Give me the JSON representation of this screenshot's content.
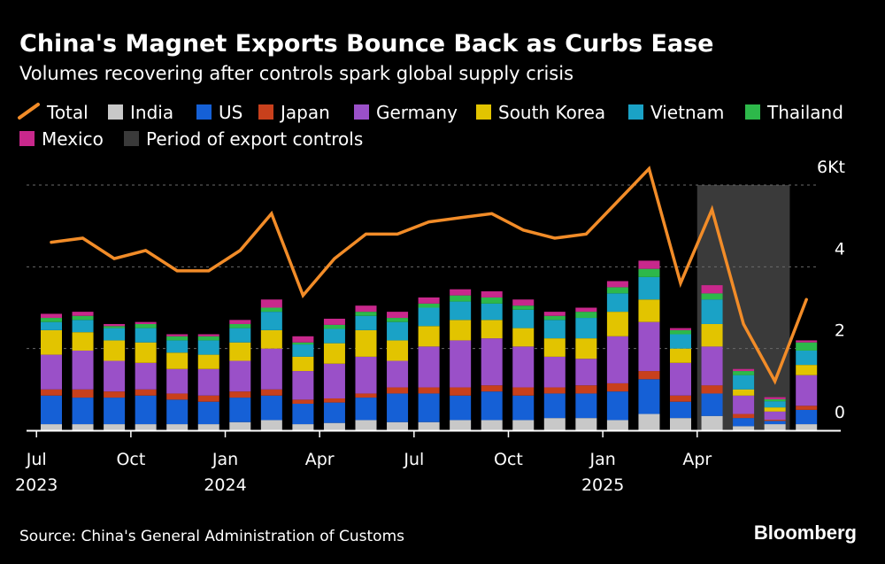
{
  "title": "China's Magnet Exports Bounce Back as Curbs Ease",
  "subtitle": "Volumes recovering after controls spark global supply crisis",
  "source": "Source: China's General Administration of Customs",
  "logo": "Bloomberg",
  "colors": {
    "background": "#000000",
    "total_line": "#f28c28",
    "India": "#c8c8c8",
    "US": "#1560d6",
    "Japan": "#c8401c",
    "Germany": "#9a50c8",
    "South Korea": "#e2c400",
    "Vietnam": "#1aa2c6",
    "Thailand": "#2db84a",
    "Mexico": "#c8288c",
    "control_period": "#3a3a3a",
    "gridline": "#6a6a6a"
  },
  "legend": [
    {
      "label": "Total",
      "kind": "line"
    },
    {
      "label": "India",
      "kind": "swatch"
    },
    {
      "label": "US",
      "kind": "swatch"
    },
    {
      "label": "Japan",
      "kind": "swatch"
    },
    {
      "label": "Germany",
      "kind": "swatch"
    },
    {
      "label": "South Korea",
      "kind": "swatch"
    },
    {
      "label": "Vietnam",
      "kind": "swatch"
    },
    {
      "label": "Thailand",
      "kind": "swatch"
    },
    {
      "label": "Mexico",
      "kind": "swatch"
    },
    {
      "label": "Period of export controls",
      "kind": "swatch"
    }
  ],
  "chart_data": {
    "type": "bar",
    "stacked": true,
    "unit": "Kt",
    "categories": [
      "2023-07",
      "2023-08",
      "2023-09",
      "2023-10",
      "2023-11",
      "2023-12",
      "2024-01",
      "2024-02",
      "2024-03",
      "2024-04",
      "2024-05",
      "2024-06",
      "2024-07",
      "2024-08",
      "2024-09",
      "2024-10",
      "2024-11",
      "2024-12",
      "2025-01",
      "2025-02",
      "2025-03",
      "2025-04",
      "2025-05",
      "2025-06",
      "2025-07"
    ],
    "x_tick_labels": [
      {
        "label": "Jul",
        "sublabel": "2023",
        "category": "2023-07"
      },
      {
        "label": "Oct",
        "sublabel": "",
        "category": "2023-10"
      },
      {
        "label": "Jan",
        "sublabel": "2024",
        "category": "2024-01"
      },
      {
        "label": "Apr",
        "sublabel": "",
        "category": "2024-04"
      },
      {
        "label": "Jul",
        "sublabel": "",
        "category": "2024-07"
      },
      {
        "label": "Oct",
        "sublabel": "",
        "category": "2024-10"
      },
      {
        "label": "Jan",
        "sublabel": "2025",
        "category": "2025-01"
      },
      {
        "label": "Apr",
        "sublabel": "",
        "category": "2025-04"
      }
    ],
    "y_ticks": [
      {
        "value": 0,
        "label": "0"
      },
      {
        "value": 2,
        "label": "2"
      },
      {
        "value": 4,
        "label": "4"
      },
      {
        "value": 6,
        "label": "6Kt"
      }
    ],
    "ylim": [
      0,
      6
    ],
    "grid": true,
    "legend_position": "top",
    "control_period": {
      "start": "2025-04",
      "end": "2025-06"
    },
    "total_line": {
      "name": "Total",
      "values": [
        4.6,
        4.7,
        4.2,
        4.4,
        3.9,
        3.9,
        4.4,
        5.3,
        3.3,
        4.2,
        4.8,
        4.8,
        5.1,
        5.2,
        5.3,
        4.9,
        4.7,
        4.8,
        5.6,
        6.4,
        3.6,
        5.4,
        2.6,
        1.2,
        3.2
      ]
    },
    "series": [
      {
        "name": "India",
        "values": [
          0.15,
          0.15,
          0.15,
          0.15,
          0.15,
          0.15,
          0.2,
          0.25,
          0.15,
          0.18,
          0.25,
          0.2,
          0.2,
          0.25,
          0.25,
          0.25,
          0.3,
          0.3,
          0.25,
          0.4,
          0.3,
          0.35,
          0.1,
          0.15,
          0.15
        ]
      },
      {
        "name": "US",
        "values": [
          0.7,
          0.65,
          0.65,
          0.7,
          0.6,
          0.55,
          0.6,
          0.6,
          0.5,
          0.5,
          0.55,
          0.7,
          0.7,
          0.6,
          0.7,
          0.6,
          0.6,
          0.6,
          0.7,
          0.85,
          0.4,
          0.55,
          0.2,
          0.08,
          0.35
        ]
      },
      {
        "name": "Japan",
        "values": [
          0.15,
          0.2,
          0.15,
          0.15,
          0.15,
          0.15,
          0.15,
          0.15,
          0.1,
          0.1,
          0.1,
          0.15,
          0.15,
          0.2,
          0.15,
          0.2,
          0.15,
          0.2,
          0.2,
          0.2,
          0.15,
          0.2,
          0.1,
          0.03,
          0.1
        ]
      },
      {
        "name": "Germany",
        "values": [
          0.85,
          0.95,
          0.75,
          0.65,
          0.6,
          0.65,
          0.75,
          1.0,
          0.7,
          0.85,
          0.9,
          0.65,
          1.0,
          1.15,
          1.15,
          1.0,
          0.75,
          0.65,
          1.15,
          1.2,
          0.8,
          0.95,
          0.45,
          0.2,
          0.75
        ]
      },
      {
        "name": "South Korea",
        "values": [
          0.6,
          0.45,
          0.5,
          0.5,
          0.4,
          0.35,
          0.45,
          0.45,
          0.35,
          0.5,
          0.65,
          0.5,
          0.5,
          0.5,
          0.45,
          0.45,
          0.45,
          0.5,
          0.6,
          0.55,
          0.35,
          0.55,
          0.15,
          0.1,
          0.25
        ]
      },
      {
        "name": "Vietnam",
        "values": [
          0.2,
          0.3,
          0.3,
          0.35,
          0.3,
          0.35,
          0.35,
          0.45,
          0.3,
          0.35,
          0.35,
          0.45,
          0.45,
          0.45,
          0.4,
          0.45,
          0.45,
          0.5,
          0.45,
          0.55,
          0.35,
          0.6,
          0.35,
          0.15,
          0.35
        ]
      },
      {
        "name": "Thailand",
        "values": [
          0.1,
          0.1,
          0.05,
          0.1,
          0.1,
          0.1,
          0.1,
          0.1,
          0.05,
          0.1,
          0.1,
          0.1,
          0.1,
          0.15,
          0.15,
          0.1,
          0.1,
          0.15,
          0.15,
          0.2,
          0.1,
          0.15,
          0.1,
          0.05,
          0.2
        ]
      },
      {
        "name": "Mexico",
        "values": [
          0.1,
          0.1,
          0.05,
          0.05,
          0.05,
          0.05,
          0.1,
          0.2,
          0.15,
          0.15,
          0.15,
          0.15,
          0.15,
          0.15,
          0.15,
          0.15,
          0.1,
          0.1,
          0.15,
          0.2,
          0.05,
          0.2,
          0.05,
          0.05,
          0.05
        ]
      }
    ]
  }
}
